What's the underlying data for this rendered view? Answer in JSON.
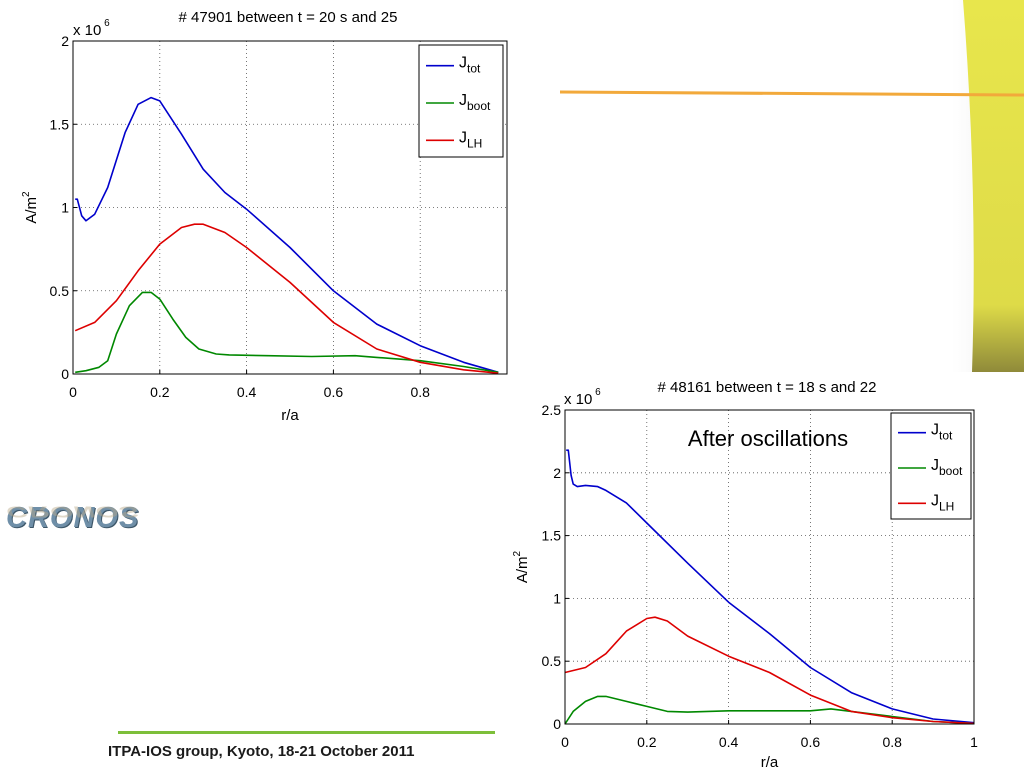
{
  "decor": {
    "accent_line_color": "#f2a93b",
    "side_bar_color": "#e6e34a",
    "footer_line_color": "#7dbf3a"
  },
  "logo": {
    "text": "CRONOS",
    "icon": "cronos-logo-icon"
  },
  "footer": {
    "text": "ITPA-IOS group, Kyoto, 18-21 October 2011"
  },
  "chart_data": [
    {
      "type": "line",
      "title": "# 47901 between t = 20 s and 25",
      "xlabel": "r/a",
      "ylabel": "A/m",
      "ylabel_sup": "2",
      "scale_text": "x 10",
      "scale_sup": "6",
      "annotation": "",
      "xlim": [
        0,
        1
      ],
      "ylim": [
        0,
        2000000
      ],
      "xticks": [
        0,
        0.2,
        0.4,
        0.6,
        0.8
      ],
      "xtick_labels": [
        "0",
        "0.2",
        "0.4",
        "0.6",
        "0.8"
      ],
      "yticks": [
        0,
        500000,
        1000000,
        1500000,
        2000000
      ],
      "ytick_labels": [
        "0",
        "0.5",
        "1",
        "1.5",
        "2"
      ],
      "grid": true,
      "legend_placement": "top-right",
      "series": [
        {
          "name": "J",
          "sub": "tot",
          "color": "#0000cc",
          "x": [
            0.005,
            0.01,
            0.02,
            0.03,
            0.05,
            0.08,
            0.12,
            0.15,
            0.18,
            0.2,
            0.25,
            0.3,
            0.35,
            0.4,
            0.5,
            0.6,
            0.7,
            0.8,
            0.9,
            0.98
          ],
          "y": [
            1050000,
            1050000,
            950000,
            920000,
            960000,
            1120000,
            1450000,
            1620000,
            1660000,
            1640000,
            1440000,
            1230000,
            1090000,
            990000,
            760000,
            500000,
            300000,
            170000,
            70000,
            10000
          ]
        },
        {
          "name": "J",
          "sub": "boot",
          "color": "#008800",
          "x": [
            0.005,
            0.03,
            0.06,
            0.08,
            0.1,
            0.13,
            0.16,
            0.18,
            0.2,
            0.23,
            0.26,
            0.29,
            0.33,
            0.36,
            0.45,
            0.55,
            0.65,
            0.7,
            0.8,
            0.9,
            0.98
          ],
          "y": [
            10000,
            20000,
            40000,
            80000,
            240000,
            410000,
            490000,
            490000,
            450000,
            330000,
            220000,
            150000,
            120000,
            115000,
            110000,
            105000,
            110000,
            100000,
            80000,
            45000,
            10000
          ]
        },
        {
          "name": "J",
          "sub": "LH",
          "color": "#dd0000",
          "x": [
            0.005,
            0.05,
            0.1,
            0.15,
            0.2,
            0.25,
            0.28,
            0.3,
            0.35,
            0.4,
            0.5,
            0.6,
            0.7,
            0.8,
            0.9,
            0.98
          ],
          "y": [
            260000,
            310000,
            440000,
            620000,
            780000,
            880000,
            900000,
            900000,
            850000,
            760000,
            550000,
            310000,
            150000,
            70000,
            25000,
            5000
          ]
        }
      ]
    },
    {
      "type": "line",
      "title": "# 48161 between t = 18 s and 22",
      "xlabel": "r/a",
      "ylabel": "A/m",
      "ylabel_sup": "2",
      "scale_text": "x 10",
      "scale_sup": "6",
      "annotation": "After oscillations",
      "xlim": [
        0,
        1
      ],
      "ylim": [
        0,
        2500000
      ],
      "xticks": [
        0,
        0.2,
        0.4,
        0.6,
        0.8,
        1
      ],
      "xtick_labels": [
        "0",
        "0.2",
        "0.4",
        "0.6",
        "0.8",
        "1"
      ],
      "yticks": [
        0,
        500000,
        1000000,
        1500000,
        2000000,
        2500000
      ],
      "ytick_labels": [
        "0",
        "0.5",
        "1",
        "1.5",
        "2",
        "2.5"
      ],
      "grid": true,
      "legend_placement": "top-right",
      "series": [
        {
          "name": "J",
          "sub": "tot",
          "color": "#0000cc",
          "x": [
            0.003,
            0.008,
            0.015,
            0.02,
            0.03,
            0.05,
            0.08,
            0.1,
            0.15,
            0.2,
            0.3,
            0.4,
            0.5,
            0.6,
            0.7,
            0.8,
            0.9,
            1.0
          ],
          "y": [
            2180000,
            2180000,
            1980000,
            1910000,
            1890000,
            1900000,
            1890000,
            1860000,
            1760000,
            1600000,
            1280000,
            970000,
            720000,
            450000,
            250000,
            120000,
            40000,
            10000
          ]
        },
        {
          "name": "J",
          "sub": "boot",
          "color": "#008800",
          "x": [
            0.0,
            0.02,
            0.05,
            0.08,
            0.1,
            0.15,
            0.2,
            0.25,
            0.3,
            0.4,
            0.5,
            0.6,
            0.65,
            0.7,
            0.8,
            0.9,
            1.0
          ],
          "y": [
            0,
            100000,
            180000,
            220000,
            220000,
            180000,
            140000,
            100000,
            95000,
            105000,
            105000,
            105000,
            120000,
            100000,
            60000,
            20000,
            5000
          ]
        },
        {
          "name": "J",
          "sub": "LH",
          "color": "#dd0000",
          "x": [
            0.0,
            0.05,
            0.1,
            0.15,
            0.2,
            0.22,
            0.25,
            0.3,
            0.4,
            0.5,
            0.6,
            0.7,
            0.8,
            0.9,
            1.0
          ],
          "y": [
            410000,
            450000,
            560000,
            740000,
            840000,
            850000,
            820000,
            700000,
            540000,
            410000,
            230000,
            100000,
            50000,
            20000,
            5000
          ]
        }
      ]
    }
  ]
}
